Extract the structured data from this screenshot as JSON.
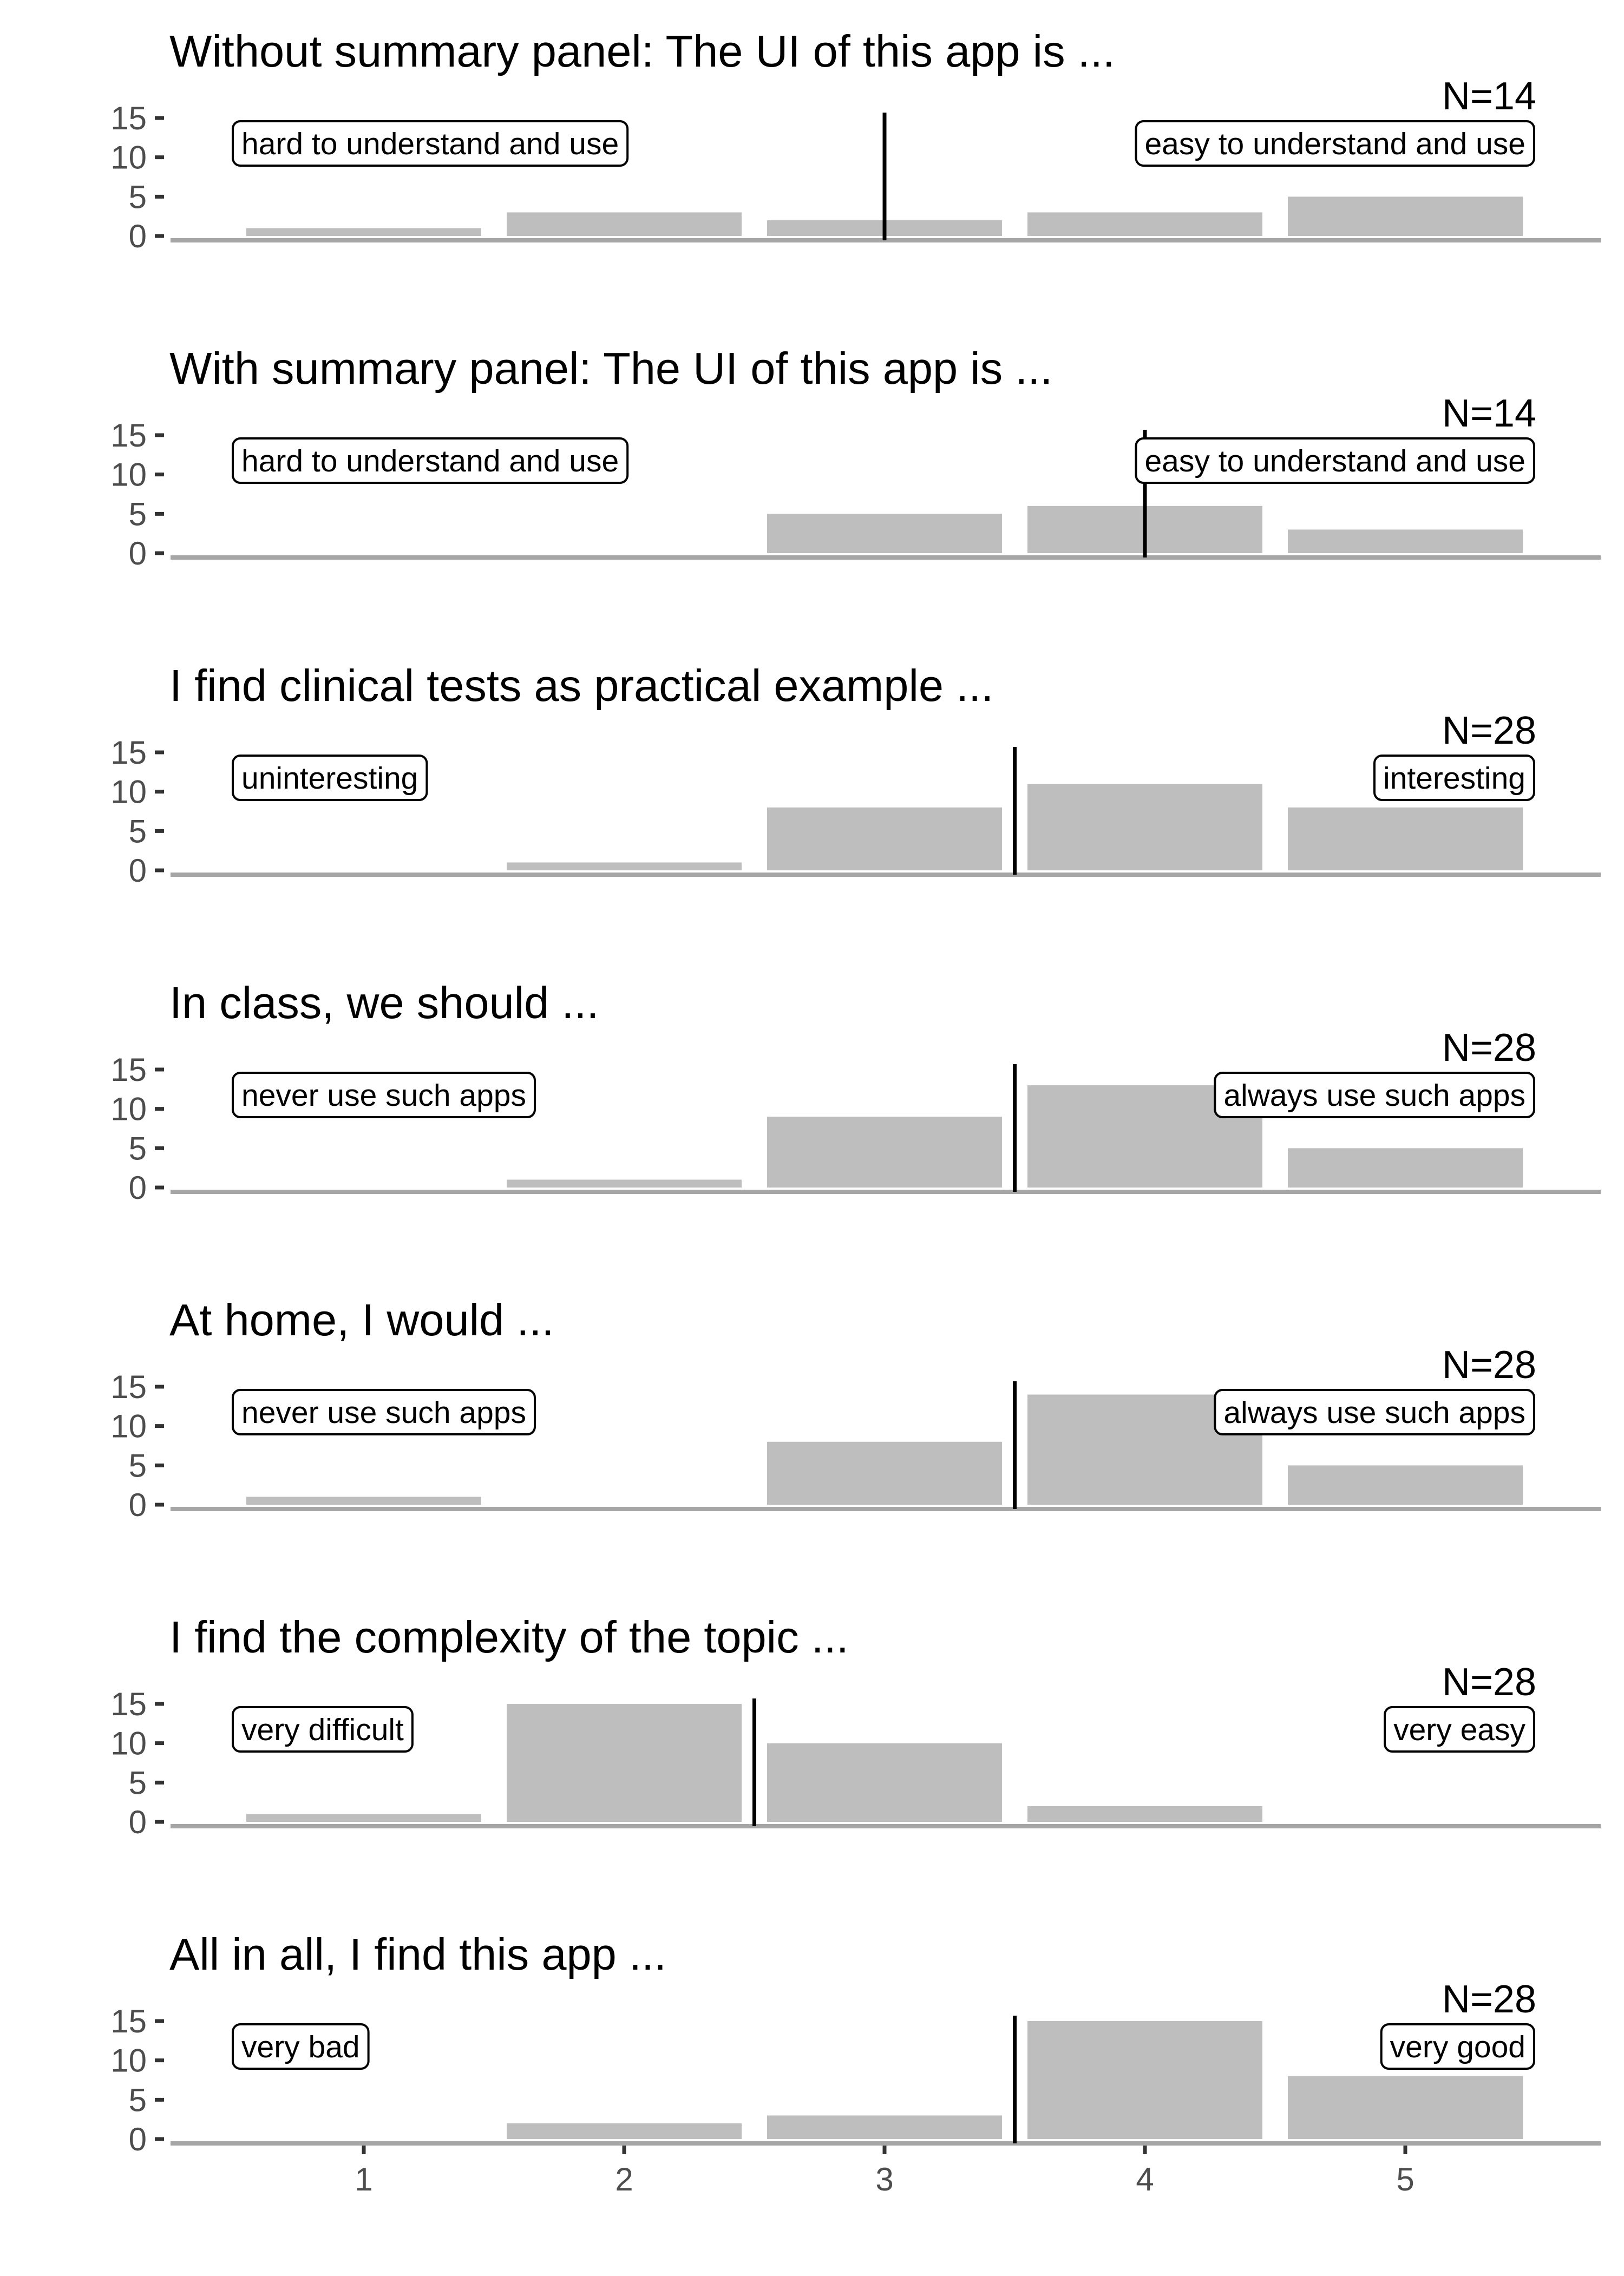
{
  "chart_data": [
    {
      "type": "bar",
      "title": "Without summary panel: The UI of this app is  ...",
      "n_label": "N=14",
      "low_label": "hard to understand and use",
      "high_label": "easy to understand and use",
      "categories": [
        1,
        2,
        3,
        4,
        5
      ],
      "values": [
        1,
        3,
        2,
        3,
        5
      ],
      "median": 3,
      "ylim": [
        0,
        15
      ],
      "yticks": [
        0,
        5,
        10,
        15
      ]
    },
    {
      "type": "bar",
      "title": "With summary panel: The UI of this app is  ...",
      "n_label": "N=14",
      "low_label": "hard to understand and use",
      "high_label": "easy to understand and use",
      "categories": [
        1,
        2,
        3,
        4,
        5
      ],
      "values": [
        0,
        0,
        5,
        6,
        3
      ],
      "median": 4,
      "ylim": [
        0,
        15
      ],
      "yticks": [
        0,
        5,
        10,
        15
      ]
    },
    {
      "type": "bar",
      "title": "I find clinical tests as practical example ...",
      "n_label": "N=28",
      "low_label": "uninteresting",
      "high_label": "interesting",
      "categories": [
        1,
        2,
        3,
        4,
        5
      ],
      "values": [
        0,
        1,
        8,
        11,
        8
      ],
      "median": 3.5,
      "ylim": [
        0,
        15
      ],
      "yticks": [
        0,
        5,
        10,
        15
      ]
    },
    {
      "type": "bar",
      "title": "In class, we should ...",
      "n_label": "N=28",
      "low_label": "never use such apps",
      "high_label": "always use such apps",
      "categories": [
        1,
        2,
        3,
        4,
        5
      ],
      "values": [
        0,
        1,
        9,
        13,
        5
      ],
      "median": 3.5,
      "ylim": [
        0,
        15
      ],
      "yticks": [
        0,
        5,
        10,
        15
      ]
    },
    {
      "type": "bar",
      "title": "At home, I would ...",
      "n_label": "N=28",
      "low_label": "never use such apps",
      "high_label": "always use such apps",
      "categories": [
        1,
        2,
        3,
        4,
        5
      ],
      "values": [
        1,
        0,
        8,
        14,
        5
      ],
      "median": 3.5,
      "ylim": [
        0,
        15
      ],
      "yticks": [
        0,
        5,
        10,
        15
      ]
    },
    {
      "type": "bar",
      "title": "I find the complexity of the topic ...",
      "n_label": "N=28",
      "low_label": "very difficult",
      "high_label": "very easy",
      "categories": [
        1,
        2,
        3,
        4,
        5
      ],
      "values": [
        1,
        15,
        10,
        2,
        0
      ],
      "median": 2.5,
      "ylim": [
        0,
        15
      ],
      "yticks": [
        0,
        5,
        10,
        15
      ]
    },
    {
      "type": "bar",
      "title": "All in all, I find this app ...",
      "n_label": "N=28",
      "low_label": "very bad",
      "high_label": "very good",
      "categories": [
        1,
        2,
        3,
        4,
        5
      ],
      "values": [
        0,
        2,
        3,
        15,
        8
      ],
      "median": 3.5,
      "ylim": [
        0,
        15
      ],
      "yticks": [
        0,
        5,
        10,
        15
      ]
    }
  ],
  "colors": {
    "bar": "#bebebe",
    "axis": "#a6a6a6",
    "median": "#000000",
    "text": "#000000",
    "tick_text": "#4d4d4d"
  },
  "show_x_ticks_on": "last"
}
